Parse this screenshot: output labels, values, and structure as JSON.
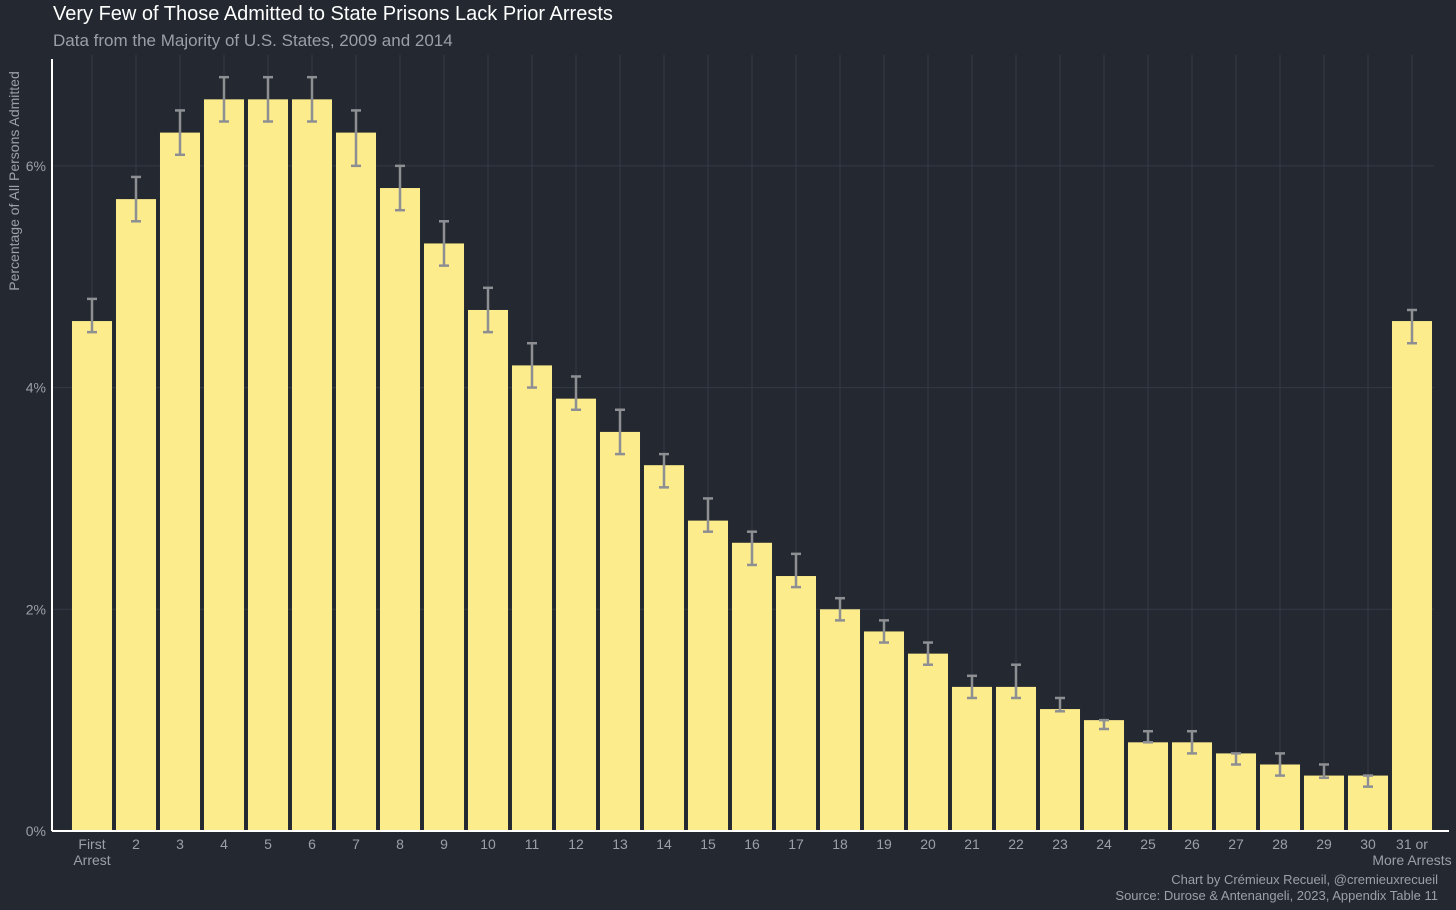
{
  "chart_data": {
    "type": "bar",
    "title": "Very Few of Those Admitted to State Prisons Lack Prior Arrests",
    "subtitle": "Data from the Majority of U.S. States, 2009 and 2014",
    "xlabel": "",
    "ylabel": "Percentage of All Persons Admitted",
    "ylim": [
      0,
      7
    ],
    "yticks": [
      0,
      2,
      4,
      6
    ],
    "ytick_labels": [
      "0%",
      "2%",
      "4%",
      "6%"
    ],
    "categories": [
      "First Arrest",
      "2",
      "3",
      "4",
      "5",
      "6",
      "7",
      "8",
      "9",
      "10",
      "11",
      "12",
      "13",
      "14",
      "15",
      "16",
      "17",
      "18",
      "19",
      "20",
      "21",
      "22",
      "23",
      "24",
      "25",
      "26",
      "27",
      "28",
      "29",
      "30",
      "31 or More Arrests"
    ],
    "category_lines": [
      [
        "First",
        "Arrest"
      ],
      [
        "2"
      ],
      [
        "3"
      ],
      [
        "4"
      ],
      [
        "5"
      ],
      [
        "6"
      ],
      [
        "7"
      ],
      [
        "8"
      ],
      [
        "9"
      ],
      [
        "10"
      ],
      [
        "11"
      ],
      [
        "12"
      ],
      [
        "13"
      ],
      [
        "14"
      ],
      [
        "15"
      ],
      [
        "16"
      ],
      [
        "17"
      ],
      [
        "18"
      ],
      [
        "19"
      ],
      [
        "20"
      ],
      [
        "21"
      ],
      [
        "22"
      ],
      [
        "23"
      ],
      [
        "24"
      ],
      [
        "25"
      ],
      [
        "26"
      ],
      [
        "27"
      ],
      [
        "28"
      ],
      [
        "29"
      ],
      [
        "30"
      ],
      [
        "31 or",
        "More Arrests"
      ]
    ],
    "values": [
      4.6,
      5.7,
      6.3,
      6.6,
      6.6,
      6.6,
      6.3,
      5.8,
      5.3,
      4.7,
      4.2,
      3.9,
      3.6,
      3.3,
      2.8,
      2.6,
      2.3,
      2.0,
      1.8,
      1.6,
      1.3,
      1.3,
      1.1,
      1.0,
      0.8,
      0.8,
      0.7,
      0.6,
      0.5,
      0.5,
      4.6
    ],
    "error_low": [
      4.5,
      5.5,
      6.1,
      6.4,
      6.4,
      6.4,
      6.0,
      5.6,
      5.1,
      4.5,
      4.0,
      3.8,
      3.4,
      3.1,
      2.7,
      2.4,
      2.2,
      1.9,
      1.7,
      1.5,
      1.2,
      1.2,
      1.08,
      0.92,
      0.8,
      0.7,
      0.6,
      0.5,
      0.48,
      0.4,
      4.4
    ],
    "error_high": [
      4.8,
      5.9,
      6.5,
      6.8,
      6.8,
      6.8,
      6.5,
      6.0,
      5.5,
      4.9,
      4.4,
      4.1,
      3.8,
      3.4,
      3.0,
      2.7,
      2.5,
      2.1,
      1.9,
      1.7,
      1.4,
      1.5,
      1.2,
      1.0,
      0.9,
      0.9,
      0.7,
      0.7,
      0.6,
      0.5,
      4.7
    ],
    "grid": true,
    "legend": "none",
    "colors": {
      "background": "#232831",
      "bar": "#fdec8c",
      "error_bar": "#8d8f93",
      "grid": "#343a45",
      "axis": "#ffffff",
      "tick_text": "#9ba0a8"
    }
  },
  "caption": {
    "line1": "Chart by Crémieux Recueil, @cremieuxrecueil",
    "line2": "Source: Durose & Antenangeli, 2023, Appendix Table 11"
  }
}
